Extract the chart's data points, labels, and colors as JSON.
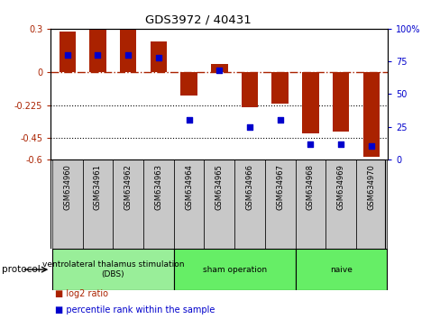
{
  "title": "GDS3972 / 40431",
  "samples": [
    "GSM634960",
    "GSM634961",
    "GSM634962",
    "GSM634963",
    "GSM634964",
    "GSM634965",
    "GSM634966",
    "GSM634967",
    "GSM634968",
    "GSM634969",
    "GSM634970"
  ],
  "log2_ratio": [
    0.28,
    0.29,
    0.295,
    0.215,
    -0.16,
    0.055,
    -0.24,
    -0.215,
    -0.42,
    -0.41,
    -0.58
  ],
  "percentile_rank": [
    80,
    80,
    80,
    78,
    30,
    68,
    25,
    30,
    12,
    12,
    10
  ],
  "group_spans": [
    {
      "start": 0,
      "end": 3,
      "label": "ventrolateral thalamus stimulation\n(DBS)",
      "color": "#99ee99"
    },
    {
      "start": 4,
      "end": 7,
      "label": "sham operation",
      "color": "#66ee66"
    },
    {
      "start": 8,
      "end": 10,
      "label": "naive",
      "color": "#66ee66"
    }
  ],
  "bar_color": "#aa2200",
  "dot_color": "#0000cc",
  "ylim_left": [
    -0.6,
    0.3
  ],
  "ylim_right": [
    0,
    100
  ],
  "yticks_left": [
    0.3,
    0,
    -0.225,
    -0.45,
    -0.6
  ],
  "yticks_right": [
    100,
    75,
    50,
    25,
    0
  ],
  "hlines": [
    -0.225,
    -0.45
  ],
  "zero_line": 0.0,
  "bar_width": 0.55,
  "sample_box_color": "#c8c8c8",
  "legend_labels": [
    "log2 ratio",
    "percentile rank within the sample"
  ]
}
